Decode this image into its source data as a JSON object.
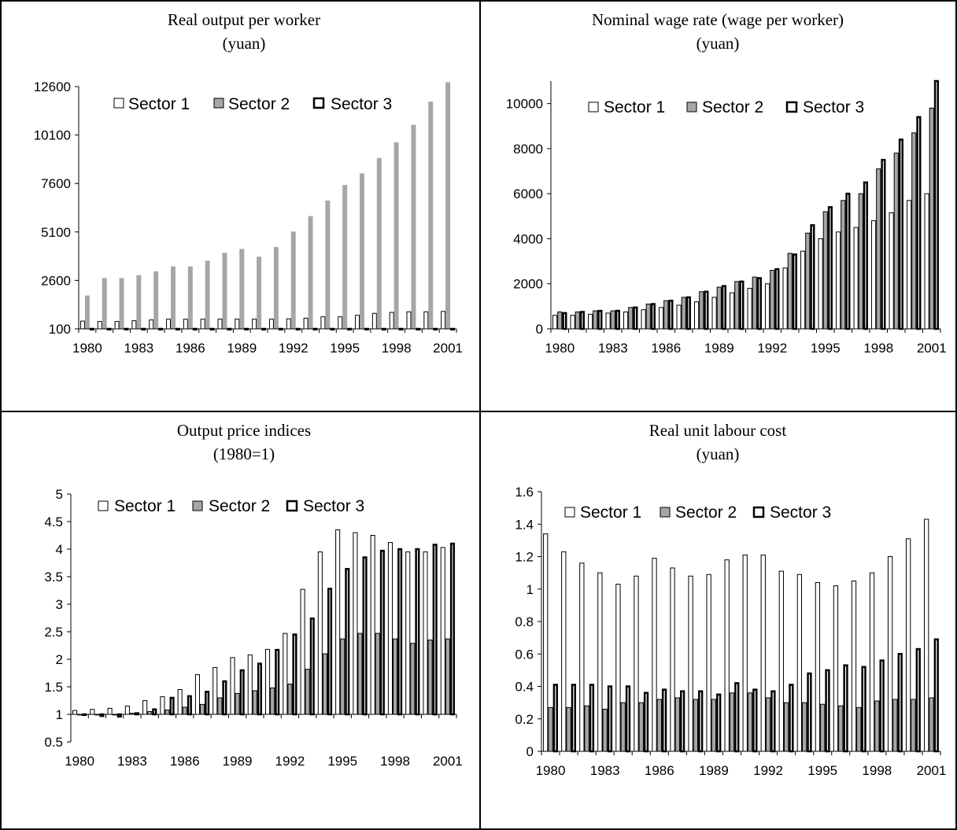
{
  "chart_data": [
    {
      "type": "bar",
      "title": "Real output per worker",
      "subtitle": "(yuan)",
      "xlabel": "",
      "ylabel": "",
      "categories": [
        1980,
        1981,
        1982,
        1983,
        1984,
        1985,
        1986,
        1987,
        1988,
        1989,
        1990,
        1991,
        1992,
        1993,
        1994,
        1995,
        1996,
        1997,
        1998,
        1999,
        2000,
        2001
      ],
      "x_tick_labels": [
        "1980",
        "1983",
        "1986",
        "1989",
        "1992",
        "1995",
        "1998",
        "2001"
      ],
      "y_tick_labels": [
        "100",
        "2600",
        "5100",
        "7600",
        "10100",
        "12600"
      ],
      "ylim": [
        100,
        12600
      ],
      "legend_position": "top",
      "grid": false,
      "series": [
        {
          "name": "Sector 1",
          "fill": "#ffffff",
          "stroke": "#000000",
          "stroke_width": 1,
          "values": [
            500,
            480,
            480,
            520,
            560,
            600,
            600,
            600,
            600,
            600,
            600,
            600,
            620,
            650,
            720,
            720,
            800,
            900,
            950,
            980,
            980,
            1000
          ]
        },
        {
          "name": "Sector 2",
          "fill": "#a6a6a6",
          "stroke": "#a6a6a6",
          "stroke_width": 1,
          "values": [
            1800,
            2700,
            2700,
            2850,
            3050,
            3300,
            3300,
            3600,
            4000,
            4200,
            3800,
            4300,
            5100,
            5900,
            6700,
            7500,
            8100,
            8900,
            9700,
            10600,
            11800,
            12800
          ]
        },
        {
          "name": "Sector 3",
          "fill": "#ffffff",
          "stroke": "#000000",
          "stroke_width": 2.5,
          "values": [
            100,
            100,
            100,
            100,
            100,
            100,
            100,
            100,
            100,
            100,
            100,
            100,
            100,
            100,
            100,
            100,
            100,
            100,
            100,
            100,
            100,
            100
          ]
        }
      ]
    },
    {
      "type": "bar",
      "title": "Nominal wage rate (wage per worker)",
      "subtitle": "(yuan)",
      "xlabel": "",
      "ylabel": "",
      "categories": [
        1980,
        1981,
        1982,
        1983,
        1984,
        1985,
        1986,
        1987,
        1988,
        1989,
        1990,
        1991,
        1992,
        1993,
        1994,
        1995,
        1996,
        1997,
        1998,
        1999,
        2000,
        2001
      ],
      "x_tick_labels": [
        "1980",
        "1983",
        "1986",
        "1989",
        "1992",
        "1995",
        "1998",
        "2001"
      ],
      "y_tick_labels": [
        "0",
        "2000",
        "4000",
        "6000",
        "8000",
        "10000"
      ],
      "ylim": [
        0,
        11000
      ],
      "legend_position": "top",
      "grid": false,
      "series": [
        {
          "name": "Sector 1",
          "fill": "#ffffff",
          "stroke": "#000000",
          "stroke_width": 1,
          "values": [
            600,
            600,
            650,
            700,
            750,
            850,
            950,
            1050,
            1200,
            1400,
            1600,
            1800,
            2000,
            2700,
            3450,
            4000,
            4300,
            4500,
            4800,
            5150,
            5700,
            6000
          ]
        },
        {
          "name": "Sector 2",
          "fill": "#a6a6a6",
          "stroke": "#000000",
          "stroke_width": 1,
          "values": [
            750,
            750,
            800,
            800,
            950,
            1100,
            1250,
            1400,
            1650,
            1850,
            2100,
            2300,
            2600,
            3350,
            4250,
            5200,
            5700,
            6000,
            7100,
            7800,
            8700,
            9800
          ]
        },
        {
          "name": "Sector 3",
          "fill": "#ffffff",
          "stroke": "#000000",
          "stroke_width": 2.5,
          "values": [
            700,
            750,
            800,
            800,
            950,
            1100,
            1250,
            1400,
            1650,
            1900,
            2100,
            2250,
            2650,
            3300,
            4600,
            5400,
            6000,
            6500,
            7500,
            8400,
            9400,
            11000
          ]
        }
      ]
    },
    {
      "type": "bar",
      "title": "Output price indices",
      "subtitle": "(1980=1)",
      "xlabel": "",
      "ylabel": "",
      "categories": [
        1980,
        1981,
        1982,
        1983,
        1984,
        1985,
        1986,
        1987,
        1988,
        1989,
        1990,
        1991,
        1992,
        1993,
        1994,
        1995,
        1996,
        1997,
        1998,
        1999,
        2000,
        2001
      ],
      "x_tick_labels": [
        "1980",
        "1983",
        "1986",
        "1989",
        "1992",
        "1995",
        "1998",
        "2001"
      ],
      "y_tick_labels": [
        "0.5",
        "1",
        "1.5",
        "2",
        "2.5",
        "3",
        "3.5",
        "4",
        "4.5",
        "5"
      ],
      "ylim": [
        0.5,
        5
      ],
      "baseline": 1,
      "legend_position": "top",
      "grid": false,
      "series": [
        {
          "name": "Sector 1",
          "fill": "#ffffff",
          "stroke": "#000000",
          "stroke_width": 1,
          "values": [
            1.07,
            1.09,
            1.11,
            1.15,
            1.25,
            1.32,
            1.45,
            1.72,
            1.85,
            2.03,
            2.08,
            2.18,
            2.47,
            3.27,
            3.95,
            4.35,
            4.3,
            4.25,
            4.12,
            3.95,
            3.95,
            4.03
          ]
        },
        {
          "name": "Sector 2",
          "fill": "#a6a6a6",
          "stroke": "#000000",
          "stroke_width": 1,
          "values": [
            1.0,
            1.0,
            1.0,
            1.02,
            1.05,
            1.08,
            1.13,
            1.18,
            1.3,
            1.38,
            1.43,
            1.48,
            1.55,
            1.82,
            2.1,
            2.37,
            2.47,
            2.47,
            2.37,
            2.29,
            2.35,
            2.37
          ]
        },
        {
          "name": "Sector 3",
          "fill": "#ffffff",
          "stroke": "#000000",
          "stroke_width": 2.5,
          "values": [
            1.0,
            0.97,
            0.96,
            1.02,
            1.09,
            1.3,
            1.33,
            1.41,
            1.6,
            1.8,
            1.92,
            2.17,
            2.45,
            2.74,
            3.28,
            3.64,
            3.85,
            3.97,
            4.0,
            4.0,
            4.08,
            4.1
          ]
        }
      ]
    },
    {
      "type": "bar",
      "title": "Real unit labour cost",
      "subtitle": "(yuan)",
      "xlabel": "",
      "ylabel": "",
      "categories": [
        1980,
        1981,
        1982,
        1983,
        1984,
        1985,
        1986,
        1987,
        1988,
        1989,
        1990,
        1991,
        1992,
        1993,
        1994,
        1995,
        1996,
        1997,
        1998,
        1999,
        2000,
        2001
      ],
      "x_tick_labels": [
        "1980",
        "1983",
        "1986",
        "1989",
        "1992",
        "1995",
        "1998",
        "2001"
      ],
      "y_tick_labels": [
        "0",
        "0.2",
        "0.4",
        "0.6",
        "0.8",
        "1",
        "1.2",
        "1.4",
        "1.6"
      ],
      "ylim": [
        0,
        1.6
      ],
      "legend_position": "top",
      "grid": false,
      "series": [
        {
          "name": "Sector 1",
          "fill": "#ffffff",
          "stroke": "#000000",
          "stroke_width": 1,
          "values": [
            1.34,
            1.23,
            1.16,
            1.1,
            1.03,
            1.08,
            1.19,
            1.13,
            1.08,
            1.09,
            1.18,
            1.21,
            1.21,
            1.11,
            1.09,
            1.04,
            1.02,
            1.05,
            1.1,
            1.2,
            1.31,
            1.43
          ]
        },
        {
          "name": "Sector 2",
          "fill": "#a6a6a6",
          "stroke": "#000000",
          "stroke_width": 1,
          "values": [
            0.27,
            0.27,
            0.28,
            0.26,
            0.3,
            0.3,
            0.32,
            0.33,
            0.32,
            0.32,
            0.36,
            0.36,
            0.33,
            0.3,
            0.3,
            0.29,
            0.28,
            0.27,
            0.31,
            0.32,
            0.32,
            0.33
          ]
        },
        {
          "name": "Sector 3",
          "fill": "#ffffff",
          "stroke": "#000000",
          "stroke_width": 2.5,
          "values": [
            0.41,
            0.41,
            0.41,
            0.4,
            0.4,
            0.36,
            0.38,
            0.37,
            0.37,
            0.35,
            0.42,
            0.38,
            0.37,
            0.41,
            0.48,
            0.5,
            0.53,
            0.52,
            0.56,
            0.6,
            0.63,
            0.69
          ]
        }
      ]
    }
  ]
}
